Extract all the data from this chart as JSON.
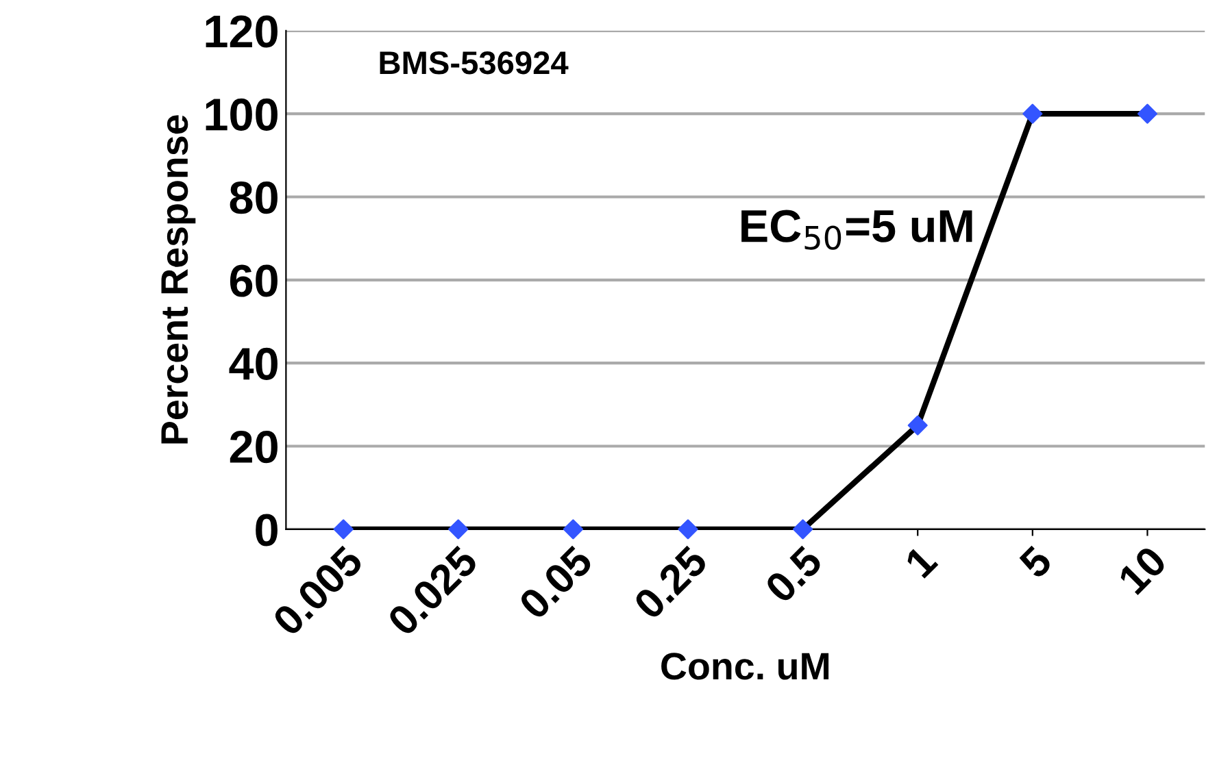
{
  "chart_data": {
    "type": "line",
    "title": "BMS-536924",
    "xlabel": "Conc. uM",
    "ylabel": "Percent Response",
    "categories": [
      "0.005",
      "0.025",
      "0.05",
      "0.25",
      "0.5",
      "1",
      "5",
      "10"
    ],
    "series": [
      {
        "color": "#000000",
        "colors": [
          "#3355ff",
          "#3355ff",
          "#3355ff",
          "#3355ff",
          "#3355ff",
          "#3355ff",
          "#3355ff",
          "#3355ff"
        ],
        "values": [
          0,
          0,
          0,
          0,
          0,
          25,
          100,
          100
        ]
      }
    ],
    "ylim": [
      0,
      120
    ],
    "yticks": [
      0,
      20,
      40,
      60,
      80,
      100,
      120
    ],
    "grid": "y",
    "marker": "diamond",
    "line_style": "solid",
    "annotations": [
      "EC$_{50}$=5 uM"
    ]
  }
}
